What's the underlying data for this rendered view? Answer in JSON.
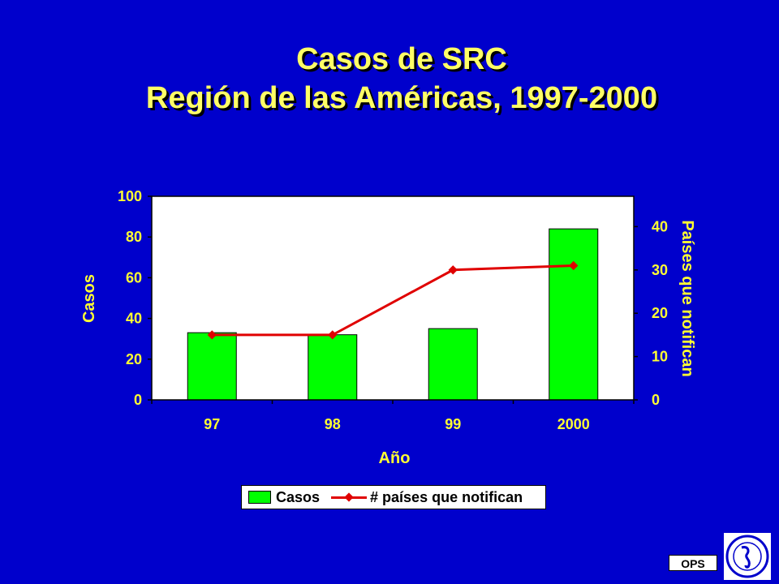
{
  "slide": {
    "title_line1": "Casos de SRC",
    "title_line2": "Región de las Américas, 1997-2000",
    "footer_label": "OPS",
    "background_color": "#0000cc",
    "text_color": "#ffff33"
  },
  "chart_data": {
    "type": "bar",
    "categories": [
      "97",
      "98",
      "99",
      "2000"
    ],
    "series": [
      {
        "name": "Casos",
        "type": "bar",
        "axis": "left",
        "color": "#00ff00",
        "values": [
          33,
          32,
          35,
          84
        ]
      },
      {
        "name": "# países que notifican",
        "type": "line",
        "axis": "right",
        "color": "#e00000",
        "values": [
          15,
          15,
          30,
          31
        ]
      }
    ],
    "xlabel": "Año",
    "ylabel": "Casos",
    "y2label": "Países que notifican",
    "ylim": [
      0,
      100
    ],
    "y2lim": [
      0,
      47
    ],
    "yticks": [
      "0",
      "20",
      "40",
      "60",
      "80",
      "100"
    ],
    "y2ticks": [
      "0",
      "10",
      "20",
      "30",
      "40"
    ],
    "legend_placement": "bottom"
  }
}
